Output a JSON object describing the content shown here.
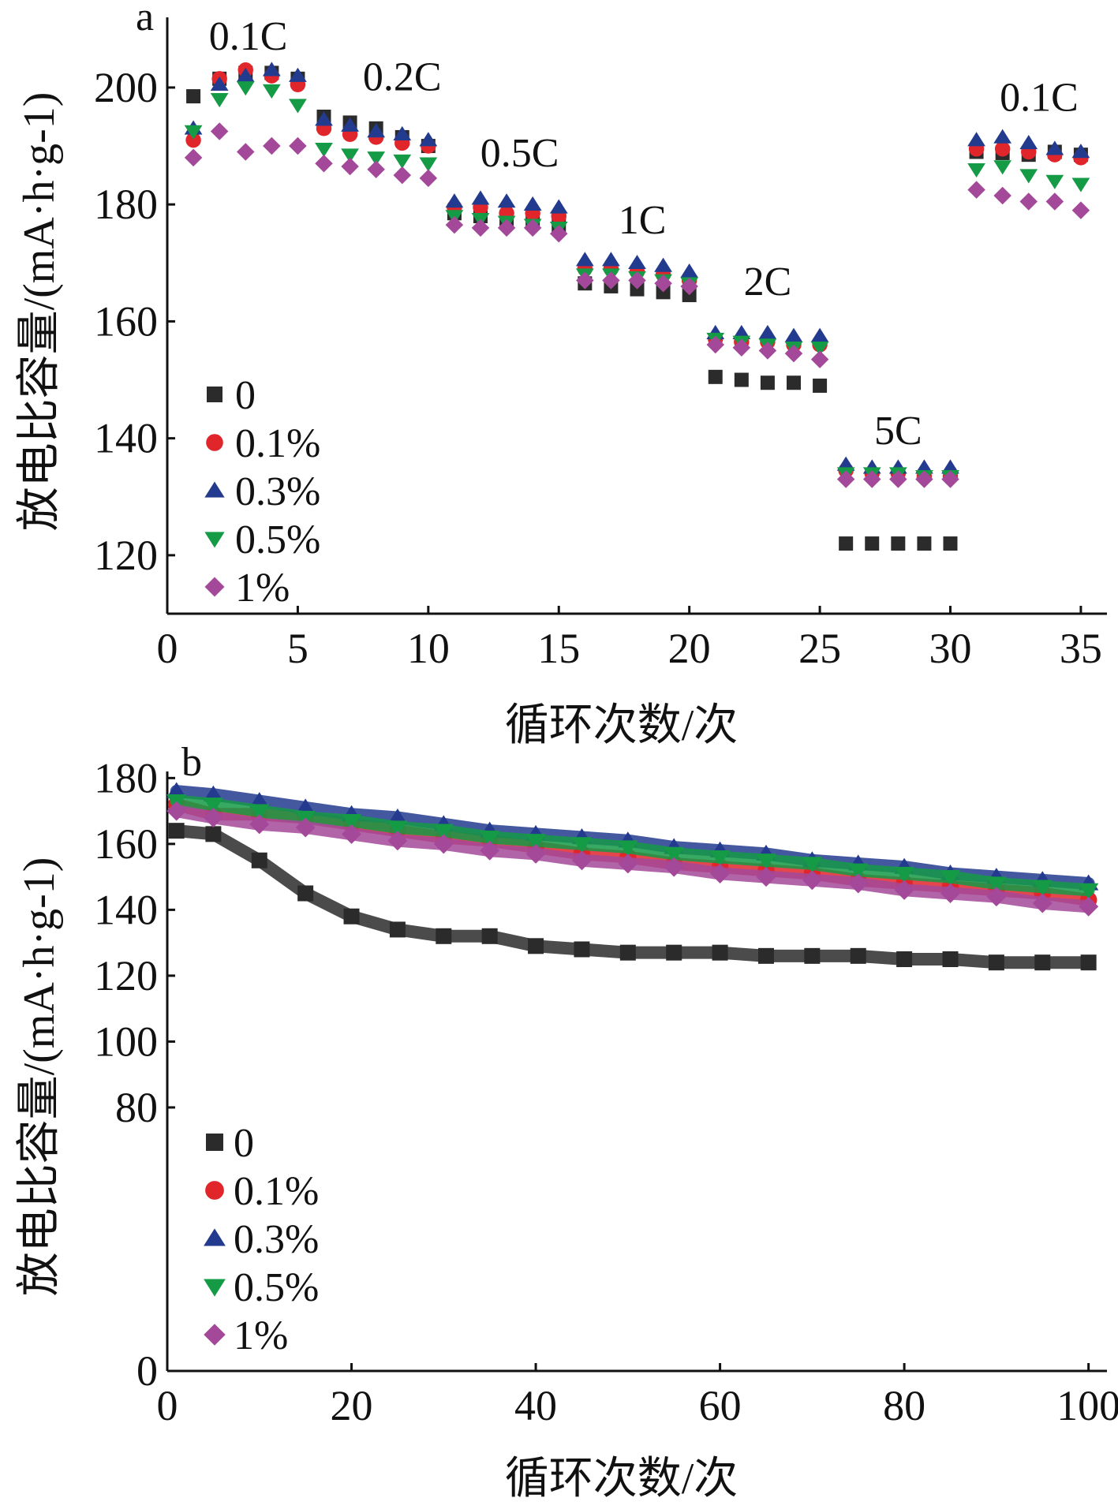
{
  "chart_data": [
    {
      "panel": "a",
      "type": "scatter",
      "xlabel": "循环次数/次",
      "ylabel": "放电比容量/(mA·h·g-1)",
      "xlim": [
        0,
        36
      ],
      "ylim": [
        110,
        212
      ],
      "xticks": [
        0,
        5,
        10,
        15,
        20,
        25,
        30,
        35
      ],
      "yticks": [
        120,
        140,
        160,
        180,
        200
      ],
      "grid": false,
      "legend": "bottom-left",
      "annotations": [
        {
          "text": "0.1C",
          "x": 3.1,
          "y": 206.5
        },
        {
          "text": "0.2C",
          "x": 9.0,
          "y": 199.5
        },
        {
          "text": "0.5C",
          "x": 13.5,
          "y": 186.5
        },
        {
          "text": "1C",
          "x": 18.2,
          "y": 175.0
        },
        {
          "text": "2C",
          "x": 23.0,
          "y": 164.5
        },
        {
          "text": "5C",
          "x": 28.0,
          "y": 139.0
        },
        {
          "text": "0.1C",
          "x": 33.4,
          "y": 196.0
        }
      ],
      "x": [
        1,
        2,
        3,
        4,
        5,
        6,
        7,
        8,
        9,
        10,
        11,
        12,
        13,
        14,
        15,
        16,
        17,
        18,
        19,
        20,
        21,
        22,
        23,
        24,
        25,
        26,
        27,
        28,
        29,
        30,
        31,
        32,
        33,
        34,
        35
      ],
      "series": [
        {
          "name": "0",
          "marker": "square",
          "color": "#2b2b2b",
          "values": [
            198.5,
            201.5,
            202.5,
            202.5,
            201.5,
            195.0,
            194.0,
            193.0,
            191.5,
            190.0,
            178.5,
            178.0,
            177.5,
            177.0,
            176.5,
            166.5,
            166.0,
            165.5,
            165.0,
            164.5,
            150.5,
            150.0,
            149.5,
            149.5,
            149.0,
            122.0,
            122.0,
            122.0,
            122.0,
            122.0,
            189.0,
            188.8,
            188.5,
            189.0,
            188.5
          ]
        },
        {
          "name": "0.1%",
          "marker": "circle",
          "color": "#e0262b",
          "values": [
            191.0,
            201.5,
            203.0,
            202.0,
            200.5,
            193.0,
            192.0,
            191.5,
            190.5,
            190.0,
            179.5,
            179.5,
            178.5,
            178.5,
            178.0,
            169.0,
            169.0,
            168.5,
            168.0,
            167.0,
            157.0,
            156.5,
            156.5,
            156.0,
            156.0,
            134.5,
            134.0,
            134.0,
            133.5,
            133.5,
            189.5,
            189.5,
            189.0,
            188.5,
            188.0
          ]
        },
        {
          "name": "0.3%",
          "marker": "triangle-up",
          "color": "#233b8f",
          "values": [
            193.0,
            200.5,
            202.0,
            203.0,
            202.0,
            194.5,
            193.5,
            192.5,
            192.0,
            191.0,
            180.5,
            181.0,
            180.5,
            180.0,
            179.5,
            170.5,
            170.5,
            170.0,
            169.5,
            168.5,
            158.0,
            158.0,
            158.0,
            157.5,
            157.5,
            135.5,
            135.0,
            135.0,
            135.0,
            135.0,
            191.0,
            191.5,
            190.5,
            189.5,
            189.0
          ]
        },
        {
          "name": "0.5%",
          "marker": "triangle-down",
          "color": "#159a46",
          "values": [
            192.5,
            198.0,
            200.0,
            199.5,
            197.0,
            189.5,
            188.5,
            188.0,
            187.5,
            187.0,
            178.0,
            177.5,
            177.0,
            176.5,
            176.0,
            168.0,
            168.0,
            167.5,
            167.0,
            166.5,
            157.0,
            156.5,
            156.0,
            155.5,
            155.5,
            134.0,
            134.0,
            134.0,
            133.5,
            133.5,
            186.0,
            186.5,
            185.0,
            184.0,
            183.5
          ]
        },
        {
          "name": "1%",
          "marker": "diamond",
          "color": "#a4499a",
          "values": [
            188.0,
            192.5,
            189.0,
            190.0,
            190.0,
            187.0,
            186.5,
            186.0,
            185.0,
            184.5,
            176.5,
            176.0,
            176.0,
            176.0,
            175.0,
            167.0,
            167.0,
            167.0,
            166.5,
            166.0,
            156.0,
            155.5,
            155.0,
            154.5,
            153.5,
            133.0,
            133.0,
            133.0,
            133.0,
            133.0,
            182.5,
            181.5,
            180.5,
            180.5,
            179.0
          ]
        }
      ]
    },
    {
      "panel": "b",
      "type": "scatter",
      "xlabel": "循环次数/次",
      "ylabel": "放电比容量/(mA·h·g-1)",
      "xlim": [
        0,
        102
      ],
      "ylim": [
        0,
        182
      ],
      "xticks": [
        0,
        20,
        40,
        60,
        80,
        100
      ],
      "yticks": [
        0,
        80,
        100,
        120,
        140,
        160,
        180
      ],
      "grid": false,
      "legend": "bottom-left",
      "x": [
        1,
        5,
        10,
        15,
        20,
        25,
        30,
        35,
        40,
        45,
        50,
        55,
        60,
        65,
        70,
        75,
        80,
        85,
        90,
        95,
        100
      ],
      "series": [
        {
          "name": "0",
          "marker": "square",
          "color": "#2b2b2b",
          "values": [
            164,
            163,
            155,
            145,
            138,
            134,
            132,
            132,
            129,
            128,
            127,
            127,
            127,
            126,
            126,
            126,
            125,
            125,
            124,
            124,
            124
          ]
        },
        {
          "name": "0.1%",
          "marker": "circle",
          "color": "#e0262b",
          "values": [
            172,
            169,
            169,
            168,
            166,
            164,
            162,
            161,
            159,
            157,
            156,
            154,
            153,
            152,
            151,
            149,
            148,
            147,
            146,
            145,
            143
          ]
        },
        {
          "name": "0.3%",
          "marker": "triangle-up",
          "color": "#233b8f",
          "values": [
            176,
            175,
            173,
            171,
            169,
            168,
            166,
            164,
            163,
            162,
            161,
            159,
            158,
            157,
            155,
            154,
            153,
            151,
            150,
            149,
            148
          ]
        },
        {
          "name": "0.5%",
          "marker": "triangle-down",
          "color": "#159a46",
          "values": [
            173,
            172,
            170,
            168,
            167,
            165,
            164,
            162,
            161,
            160,
            159,
            157,
            156,
            155,
            154,
            152,
            151,
            150,
            148,
            147,
            146
          ]
        },
        {
          "name": "1%",
          "marker": "diamond",
          "color": "#a4499a",
          "values": [
            170,
            168,
            166,
            165,
            163,
            161,
            160,
            158,
            157,
            155,
            154,
            153,
            151,
            150,
            149,
            148,
            146,
            145,
            144,
            142,
            141
          ]
        }
      ]
    }
  ]
}
